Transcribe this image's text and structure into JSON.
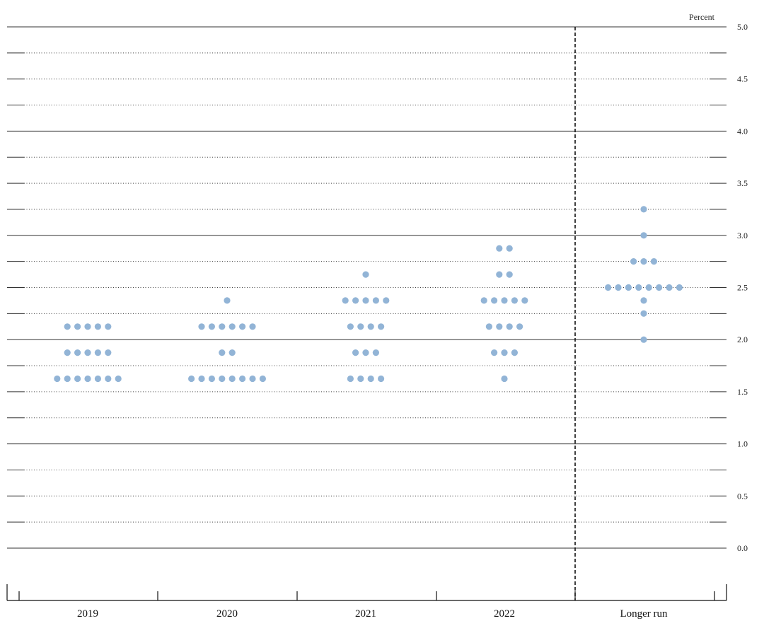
{
  "chart_data": {
    "type": "scatter",
    "title": "",
    "ylabel": "Percent",
    "ylim": [
      0,
      5
    ],
    "yticks": [
      "0.0",
      "0.5",
      "1.0",
      "1.5",
      "2.0",
      "2.5",
      "3.0",
      "3.5",
      "4.0",
      "4.5",
      "5.0"
    ],
    "categories": [
      "2019",
      "2020",
      "2021",
      "2022",
      "Longer run"
    ],
    "grid": true,
    "dot_color": "#92b4d6",
    "series": [
      {
        "values": [
          {
            "y": 2.125,
            "count": 5
          },
          {
            "y": 1.875,
            "count": 5
          },
          {
            "y": 1.625,
            "count": 7
          }
        ]
      },
      {
        "values": [
          {
            "y": 2.375,
            "count": 1
          },
          {
            "y": 2.125,
            "count": 6
          },
          {
            "y": 1.875,
            "count": 2
          },
          {
            "y": 1.625,
            "count": 8
          }
        ]
      },
      {
        "values": [
          {
            "y": 2.625,
            "count": 1
          },
          {
            "y": 2.375,
            "count": 5
          },
          {
            "y": 2.125,
            "count": 4
          },
          {
            "y": 1.875,
            "count": 3
          },
          {
            "y": 1.625,
            "count": 4
          }
        ]
      },
      {
        "values": [
          {
            "y": 2.875,
            "count": 2
          },
          {
            "y": 2.625,
            "count": 2
          },
          {
            "y": 2.375,
            "count": 5
          },
          {
            "y": 2.125,
            "count": 4
          },
          {
            "y": 1.875,
            "count": 3
          },
          {
            "y": 1.625,
            "count": 1
          }
        ]
      },
      {
        "values": [
          {
            "y": 3.25,
            "count": 1
          },
          {
            "y": 3.0,
            "count": 1
          },
          {
            "y": 2.75,
            "count": 3
          },
          {
            "y": 2.5,
            "count": 8
          },
          {
            "y": 2.375,
            "count": 1
          },
          {
            "y": 2.25,
            "count": 1
          },
          {
            "y": 2.0,
            "count": 1
          }
        ]
      }
    ]
  }
}
